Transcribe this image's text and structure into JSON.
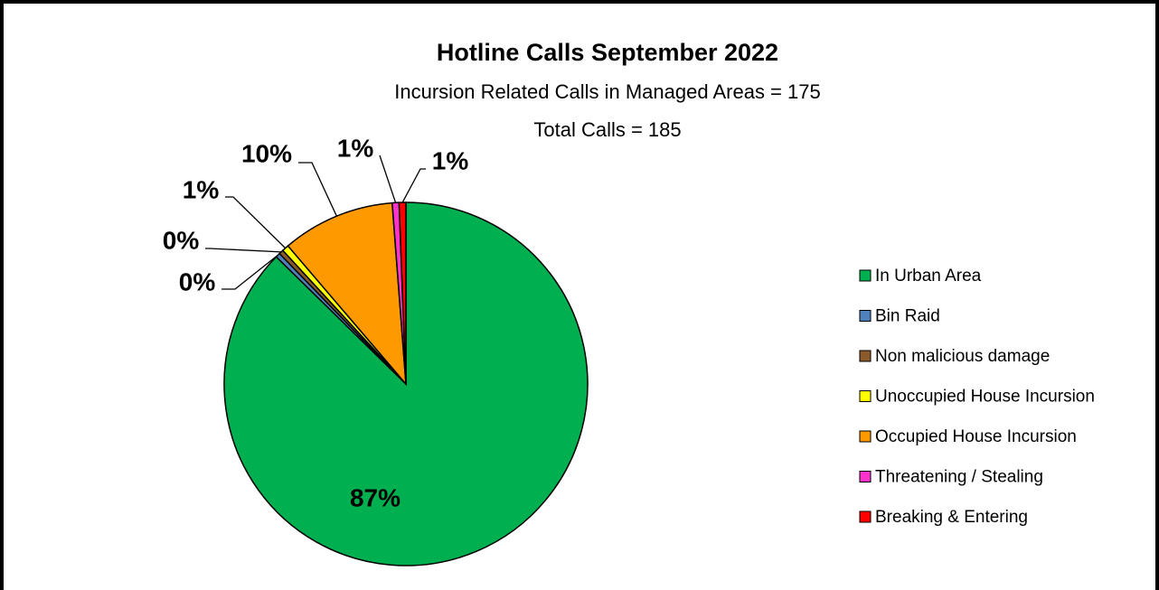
{
  "chart_data": {
    "type": "pie",
    "title": "Hotline Calls September 2022",
    "subtitles": [
      "Incursion Related Calls in Managed Areas  = 175",
      "Total Calls = 185"
    ],
    "categories": [
      "In Urban Area",
      "Bin Raid",
      "Non malicious damage",
      "Unoccupied House Incursion",
      "Occupied House Incursion",
      "Threatening / Stealing",
      "Breaking & Entering"
    ],
    "values": [
      87,
      0.4,
      0.4,
      0.6,
      10,
      0.6,
      0.6
    ],
    "value_labels": [
      "87%",
      "0%",
      "0%",
      "1%",
      "10%",
      "1%",
      "1%"
    ],
    "colors": [
      "#00b050",
      "#4f81bd",
      "#8b5a2b",
      "#ffff00",
      "#ff9900",
      "#ff33cc",
      "#ff0000"
    ],
    "legend": "right"
  }
}
